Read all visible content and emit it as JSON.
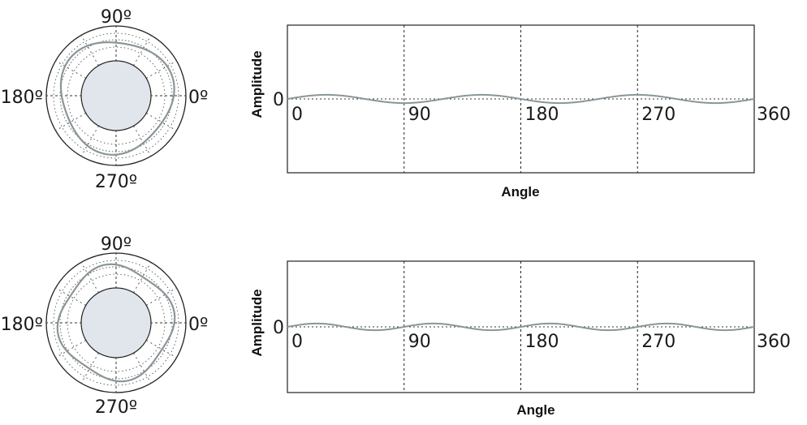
{
  "chart_data": [
    {
      "type": "line",
      "polar": {
        "angle_labels": [
          "90º",
          "180º",
          "0º",
          "270º"
        ],
        "curve_harmonic": 3,
        "curve_amplitude": 0.06,
        "reference_circle": "dotted"
      },
      "xlabel": "Angle",
      "ylabel": "Amplitude",
      "xticks": [
        "0",
        "90",
        "180",
        "270",
        "360"
      ],
      "yticks": [
        "0"
      ],
      "xlim": [
        0,
        360
      ],
      "ylim": [
        -1,
        1
      ],
      "grid": "dashed vertical at 90, 180, 270; dotted zero line",
      "series": [
        {
          "x": [
            0,
            30,
            60,
            90,
            120,
            150,
            180,
            210,
            240,
            270,
            300,
            330,
            360
          ],
          "y": [
            0,
            0.06,
            0,
            -0.06,
            0,
            0.06,
            0,
            -0.06,
            0,
            0.06,
            0,
            -0.06,
            0
          ]
        }
      ],
      "color": "#8a9599"
    },
    {
      "type": "line",
      "polar": {
        "angle_labels": [
          "90º",
          "180º",
          "0º",
          "270º"
        ],
        "curve_harmonic": 4,
        "curve_amplitude": 0.055,
        "reference_circle": "dotted"
      },
      "xlabel": "Angle",
      "ylabel": "Amplitude",
      "xticks": [
        "0",
        "90",
        "180",
        "270",
        "360"
      ],
      "yticks": [
        "0"
      ],
      "xlim": [
        0,
        360
      ],
      "ylim": [
        -1,
        1
      ],
      "grid": "dashed vertical at 90, 180, 270; dotted zero line",
      "series": [
        {
          "x": [
            0,
            22.5,
            45,
            67.5,
            90,
            112.5,
            135,
            157.5,
            180,
            202.5,
            225,
            247.5,
            270,
            292.5,
            315,
            337.5,
            360
          ],
          "y": [
            0,
            0.055,
            0,
            -0.055,
            0,
            0.055,
            0,
            -0.055,
            0,
            0.055,
            0,
            -0.055,
            0,
            0.055,
            0,
            -0.055,
            0
          ]
        }
      ],
      "color": "#8a9599"
    }
  ]
}
